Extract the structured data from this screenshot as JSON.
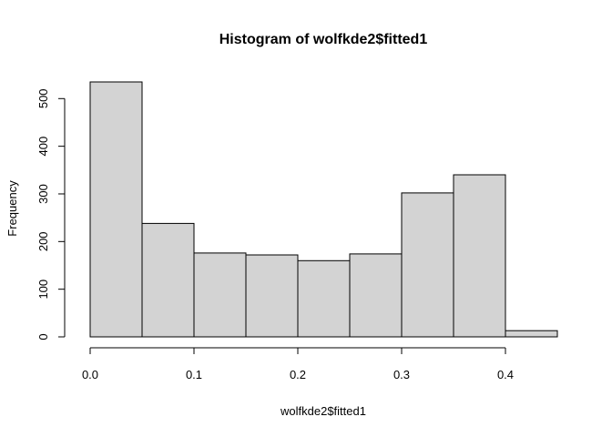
{
  "chart_data": {
    "type": "bar",
    "title": "Histogram of wolfkde2$fitted1",
    "xlabel": "wolfkde2$fitted1",
    "ylabel": "Frequency",
    "bins": [
      {
        "start": 0.0,
        "end": 0.05,
        "count": 535
      },
      {
        "start": 0.05,
        "end": 0.1,
        "count": 238
      },
      {
        "start": 0.1,
        "end": 0.15,
        "count": 176
      },
      {
        "start": 0.15,
        "end": 0.2,
        "count": 172
      },
      {
        "start": 0.2,
        "end": 0.25,
        "count": 160
      },
      {
        "start": 0.25,
        "end": 0.3,
        "count": 174
      },
      {
        "start": 0.3,
        "end": 0.35,
        "count": 302
      },
      {
        "start": 0.35,
        "end": 0.4,
        "count": 340
      },
      {
        "start": 0.4,
        "end": 0.45,
        "count": 13
      }
    ],
    "xticks": [
      0.0,
      0.1,
      0.2,
      0.3,
      0.4
    ],
    "xtick_labels": [
      "0.0",
      "0.1",
      "0.2",
      "0.3",
      "0.4"
    ],
    "yticks": [
      0,
      100,
      200,
      300,
      400,
      500
    ],
    "ytick_labels": [
      "0",
      "100",
      "200",
      "300",
      "400",
      "500"
    ],
    "xlim": [
      0.0,
      0.45
    ],
    "ylim": [
      0,
      535
    ],
    "grid": false,
    "legend": "none",
    "colors": {
      "bar_fill": "#d3d3d3",
      "bar_stroke": "#000000"
    }
  }
}
